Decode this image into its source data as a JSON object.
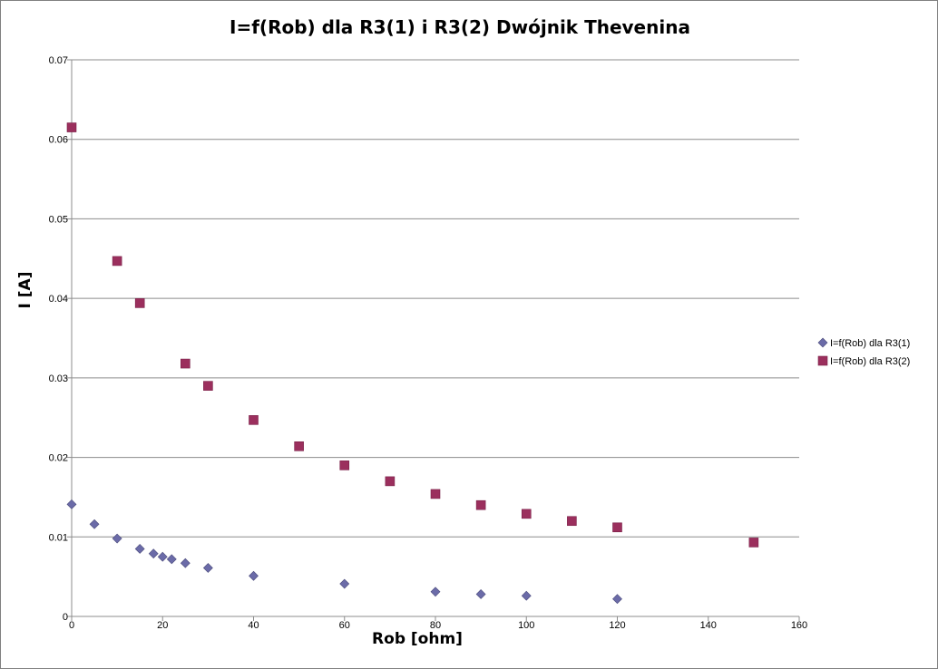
{
  "chart_data": {
    "type": "scatter",
    "title": "I=f(Rob) dla R3(1) i R3(2) Dwójnik Thevenina",
    "xlabel": "Rob [ohm]",
    "ylabel": "I [A]",
    "xlim": [
      0,
      160
    ],
    "ylim": [
      0,
      0.07
    ],
    "x_ticks": [
      "0",
      "20",
      "40",
      "60",
      "80",
      "100",
      "120",
      "140",
      "160"
    ],
    "y_ticks": [
      "0",
      "0.01",
      "0.02",
      "0.03",
      "0.04",
      "0.05",
      "0.06",
      "0.07"
    ],
    "grid": "horizontal",
    "legend_position": "right",
    "series": [
      {
        "name": "I=f(Rob) dla R3(1)",
        "marker": "diamond",
        "color": "#6b6ba8",
        "x": [
          0,
          5,
          10,
          15,
          18,
          20,
          22,
          25,
          30,
          40,
          60,
          80,
          90,
          100,
          120
        ],
        "y": [
          0.0141,
          0.0116,
          0.0098,
          0.0085,
          0.0079,
          0.0075,
          0.0072,
          0.0067,
          0.0061,
          0.0051,
          0.0041,
          0.0031,
          0.0028,
          0.0026,
          0.0022
        ]
      },
      {
        "name": "I=f(Rob) dla R3(2)",
        "marker": "square",
        "color": "#9b2f5d",
        "x": [
          0,
          10,
          15,
          25,
          30,
          40,
          50,
          60,
          70,
          80,
          90,
          100,
          110,
          120,
          150
        ],
        "y": [
          0.0615,
          0.0447,
          0.0394,
          0.0318,
          0.029,
          0.0247,
          0.0214,
          0.019,
          0.017,
          0.0154,
          0.014,
          0.0129,
          0.012,
          0.0112,
          0.0093
        ]
      }
    ]
  }
}
